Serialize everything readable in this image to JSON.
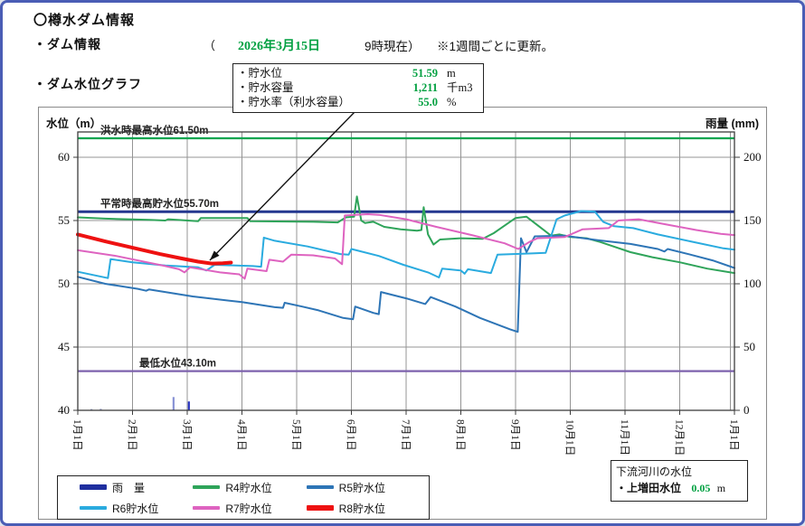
{
  "header": {
    "title": "〇樽水ダム情報",
    "dam_info_label": "・ダム情報",
    "paren_open": "（",
    "date": "2026年3月15日",
    "time_note": "9時現在）",
    "update_note": "※1週間ごとに更新。",
    "graph_label": "・ダム水位グラフ"
  },
  "info_box": {
    "rows": [
      {
        "label": "・貯水位",
        "value": "51.59",
        "unit": "m"
      },
      {
        "label": "・貯水容量",
        "value": "1,211",
        "unit": "千m3"
      },
      {
        "label": "・貯水率（利水容量）",
        "value": "55.0",
        "unit": "%"
      }
    ]
  },
  "downstream_box": {
    "title": "下流河川の水位",
    "label": "・上増田水位",
    "value": "0.05",
    "unit": "m"
  },
  "legend": {
    "items": [
      {
        "label": "雨　量",
        "color": "#1f2f9f",
        "thick": true
      },
      {
        "label": "R4貯水位",
        "color": "#2fa45a",
        "thick": false
      },
      {
        "label": "R5貯水位",
        "color": "#2e75b6",
        "thick": false
      },
      {
        "label": "R6貯水位",
        "color": "#2aabdf",
        "thick": false
      },
      {
        "label": "R7貯水位",
        "color": "#de63c0",
        "thick": false
      },
      {
        "label": "R8貯水位",
        "color": "#ee1111",
        "thick": true
      }
    ]
  },
  "chart_data": {
    "type": "line",
    "title": "ダム水位グラフ",
    "left_axis": {
      "label": "水位（m）",
      "min": 40,
      "max": 62,
      "ticks": [
        40,
        45,
        50,
        55,
        60
      ]
    },
    "right_axis": {
      "label": "雨量 (mm)",
      "min": 0,
      "max": 220,
      "ticks": [
        0,
        50,
        100,
        150,
        200
      ]
    },
    "x_axis": {
      "labels": [
        "1月1日",
        "2月1日",
        "3月1日",
        "4月1日",
        "5月1日",
        "6月1日",
        "7月1日",
        "8月1日",
        "9月1日",
        "10月1日",
        "11月1日",
        "12月1日",
        "1月1日"
      ],
      "grid": true
    },
    "ref_lines": [
      {
        "label": "洪水時最高水位61.50m",
        "value": 61.5,
        "color": "#00a550"
      },
      {
        "label": "平常時最高貯水位55.70m",
        "value": 55.7,
        "color": "#24378f"
      },
      {
        "label": "最低水位43.10m",
        "value": 43.1,
        "color": "#7d62ad"
      }
    ],
    "rain_bars": [
      {
        "month": 0.25,
        "mm": 1.0,
        "color": "#9aa0c8"
      },
      {
        "month": 0.42,
        "mm": 1.2,
        "color": "#9aa0c8"
      },
      {
        "month": 1.75,
        "mm": 10.5,
        "color": "#8a93d6"
      },
      {
        "month": 2.03,
        "mm": 7.0,
        "color": "#2a35c0"
      }
    ],
    "series": [
      {
        "name": "R4貯水位",
        "color": "#2fa45a",
        "width": 2,
        "points": [
          [
            0,
            55.25
          ],
          [
            0.5,
            55.15
          ],
          [
            1.3,
            55.05
          ],
          [
            1.6,
            55.0
          ],
          [
            1.65,
            55.1
          ],
          [
            2.2,
            54.95
          ],
          [
            2.25,
            55.2
          ],
          [
            3.1,
            55.2
          ],
          [
            3.15,
            54.95
          ],
          [
            4.3,
            54.9
          ],
          [
            4.75,
            54.85
          ],
          [
            4.9,
            55.25
          ],
          [
            5.05,
            55.3
          ],
          [
            5.1,
            56.9
          ],
          [
            5.18,
            55.0
          ],
          [
            5.25,
            54.8
          ],
          [
            5.4,
            54.9
          ],
          [
            5.6,
            54.5
          ],
          [
            5.9,
            54.3
          ],
          [
            6.2,
            54.2
          ],
          [
            6.28,
            54.25
          ],
          [
            6.32,
            56.05
          ],
          [
            6.4,
            53.9
          ],
          [
            6.5,
            53.1
          ],
          [
            6.62,
            53.5
          ],
          [
            7.0,
            53.6
          ],
          [
            7.4,
            53.55
          ],
          [
            7.6,
            54.0
          ],
          [
            8.0,
            55.2
          ],
          [
            8.2,
            55.3
          ],
          [
            8.5,
            54.3
          ],
          [
            8.65,
            53.8
          ],
          [
            8.8,
            53.9
          ],
          [
            9.0,
            53.7
          ],
          [
            9.3,
            53.6
          ],
          [
            9.55,
            53.3
          ],
          [
            10.1,
            52.5
          ],
          [
            10.5,
            52.1
          ],
          [
            11.0,
            51.7
          ],
          [
            11.5,
            51.2
          ],
          [
            12,
            50.85
          ]
        ]
      },
      {
        "name": "R5貯水位",
        "color": "#2e75b6",
        "width": 2,
        "points": [
          [
            0,
            50.55
          ],
          [
            0.5,
            50.0
          ],
          [
            1.1,
            49.6
          ],
          [
            1.25,
            49.45
          ],
          [
            1.3,
            49.55
          ],
          [
            2.1,
            49.0
          ],
          [
            3.0,
            48.55
          ],
          [
            3.6,
            48.15
          ],
          [
            3.75,
            48.1
          ],
          [
            3.78,
            48.5
          ],
          [
            4.1,
            48.2
          ],
          [
            4.4,
            47.9
          ],
          [
            4.85,
            47.3
          ],
          [
            5.03,
            47.2
          ],
          [
            5.07,
            48.2
          ],
          [
            5.4,
            47.7
          ],
          [
            5.5,
            47.6
          ],
          [
            5.54,
            49.35
          ],
          [
            6.0,
            48.85
          ],
          [
            6.35,
            48.4
          ],
          [
            6.45,
            48.95
          ],
          [
            6.9,
            48.2
          ],
          [
            7.35,
            47.3
          ],
          [
            7.9,
            46.4
          ],
          [
            8.04,
            46.2
          ],
          [
            8.1,
            53.6
          ],
          [
            8.2,
            52.5
          ],
          [
            8.35,
            53.75
          ],
          [
            8.9,
            53.8
          ],
          [
            9.5,
            53.45
          ],
          [
            10.1,
            53.15
          ],
          [
            10.6,
            52.75
          ],
          [
            10.72,
            52.55
          ],
          [
            10.78,
            52.75
          ],
          [
            11.2,
            52.3
          ],
          [
            11.6,
            51.85
          ],
          [
            12,
            51.25
          ]
        ]
      },
      {
        "name": "R6貯水位",
        "color": "#2aabdf",
        "width": 2,
        "points": [
          [
            0,
            50.95
          ],
          [
            0.55,
            50.45
          ],
          [
            0.6,
            51.95
          ],
          [
            1.0,
            51.7
          ],
          [
            1.6,
            51.45
          ],
          [
            2.2,
            51.3
          ],
          [
            2.35,
            51.05
          ],
          [
            2.5,
            51.5
          ],
          [
            3.2,
            51.4
          ],
          [
            3.35,
            51.35
          ],
          [
            3.4,
            53.65
          ],
          [
            3.6,
            53.4
          ],
          [
            4.2,
            52.95
          ],
          [
            4.8,
            52.35
          ],
          [
            4.95,
            52.3
          ],
          [
            5.0,
            52.75
          ],
          [
            5.5,
            52.2
          ],
          [
            5.95,
            51.5
          ],
          [
            6.4,
            50.9
          ],
          [
            6.6,
            50.5
          ],
          [
            6.66,
            51.2
          ],
          [
            7.0,
            51.05
          ],
          [
            7.07,
            50.8
          ],
          [
            7.13,
            51.15
          ],
          [
            7.55,
            50.85
          ],
          [
            7.67,
            52.3
          ],
          [
            8.3,
            52.4
          ],
          [
            8.55,
            52.45
          ],
          [
            8.75,
            55.1
          ],
          [
            8.9,
            55.4
          ],
          [
            9.2,
            55.75
          ],
          [
            9.45,
            55.7
          ],
          [
            9.6,
            54.9
          ],
          [
            9.8,
            54.55
          ],
          [
            10.15,
            54.4
          ],
          [
            10.6,
            53.9
          ],
          [
            11.2,
            53.35
          ],
          [
            11.8,
            52.8
          ],
          [
            12,
            52.7
          ]
        ]
      },
      {
        "name": "R7貯水位",
        "color": "#de63c0",
        "width": 2,
        "points": [
          [
            0,
            52.65
          ],
          [
            0.7,
            52.2
          ],
          [
            1.6,
            51.4
          ],
          [
            1.85,
            51.15
          ],
          [
            1.95,
            50.9
          ],
          [
            2.05,
            51.3
          ],
          [
            2.6,
            50.9
          ],
          [
            2.95,
            50.75
          ],
          [
            3.05,
            50.4
          ],
          [
            3.1,
            51.2
          ],
          [
            3.45,
            51.0
          ],
          [
            3.5,
            51.9
          ],
          [
            3.75,
            51.75
          ],
          [
            3.9,
            52.3
          ],
          [
            4.3,
            52.25
          ],
          [
            4.7,
            52.0
          ],
          [
            4.83,
            51.55
          ],
          [
            4.88,
            55.4
          ],
          [
            5.3,
            55.5
          ],
          [
            5.5,
            55.45
          ],
          [
            6.0,
            55.1
          ],
          [
            6.55,
            54.5
          ],
          [
            7.2,
            53.85
          ],
          [
            7.8,
            53.2
          ],
          [
            8.05,
            52.75
          ],
          [
            8.25,
            53.3
          ],
          [
            8.4,
            53.6
          ],
          [
            8.9,
            53.7
          ],
          [
            9.22,
            54.3
          ],
          [
            9.7,
            54.4
          ],
          [
            9.88,
            55.0
          ],
          [
            10.25,
            55.1
          ],
          [
            10.8,
            54.65
          ],
          [
            11.3,
            54.25
          ],
          [
            11.75,
            53.95
          ],
          [
            12,
            53.85
          ]
        ]
      },
      {
        "name": "R8貯水位",
        "color": "#ee1111",
        "width": 4,
        "points": [
          [
            0,
            53.9
          ],
          [
            0.5,
            53.35
          ],
          [
            1.0,
            52.85
          ],
          [
            1.5,
            52.35
          ],
          [
            1.9,
            52.0
          ],
          [
            2.2,
            51.75
          ],
          [
            2.45,
            51.6
          ],
          [
            2.65,
            51.62
          ],
          [
            2.8,
            51.68
          ]
        ]
      }
    ],
    "callout_arrow": {
      "from_page": [
        388,
        120
      ],
      "to_page": [
        228,
        284
      ]
    }
  }
}
